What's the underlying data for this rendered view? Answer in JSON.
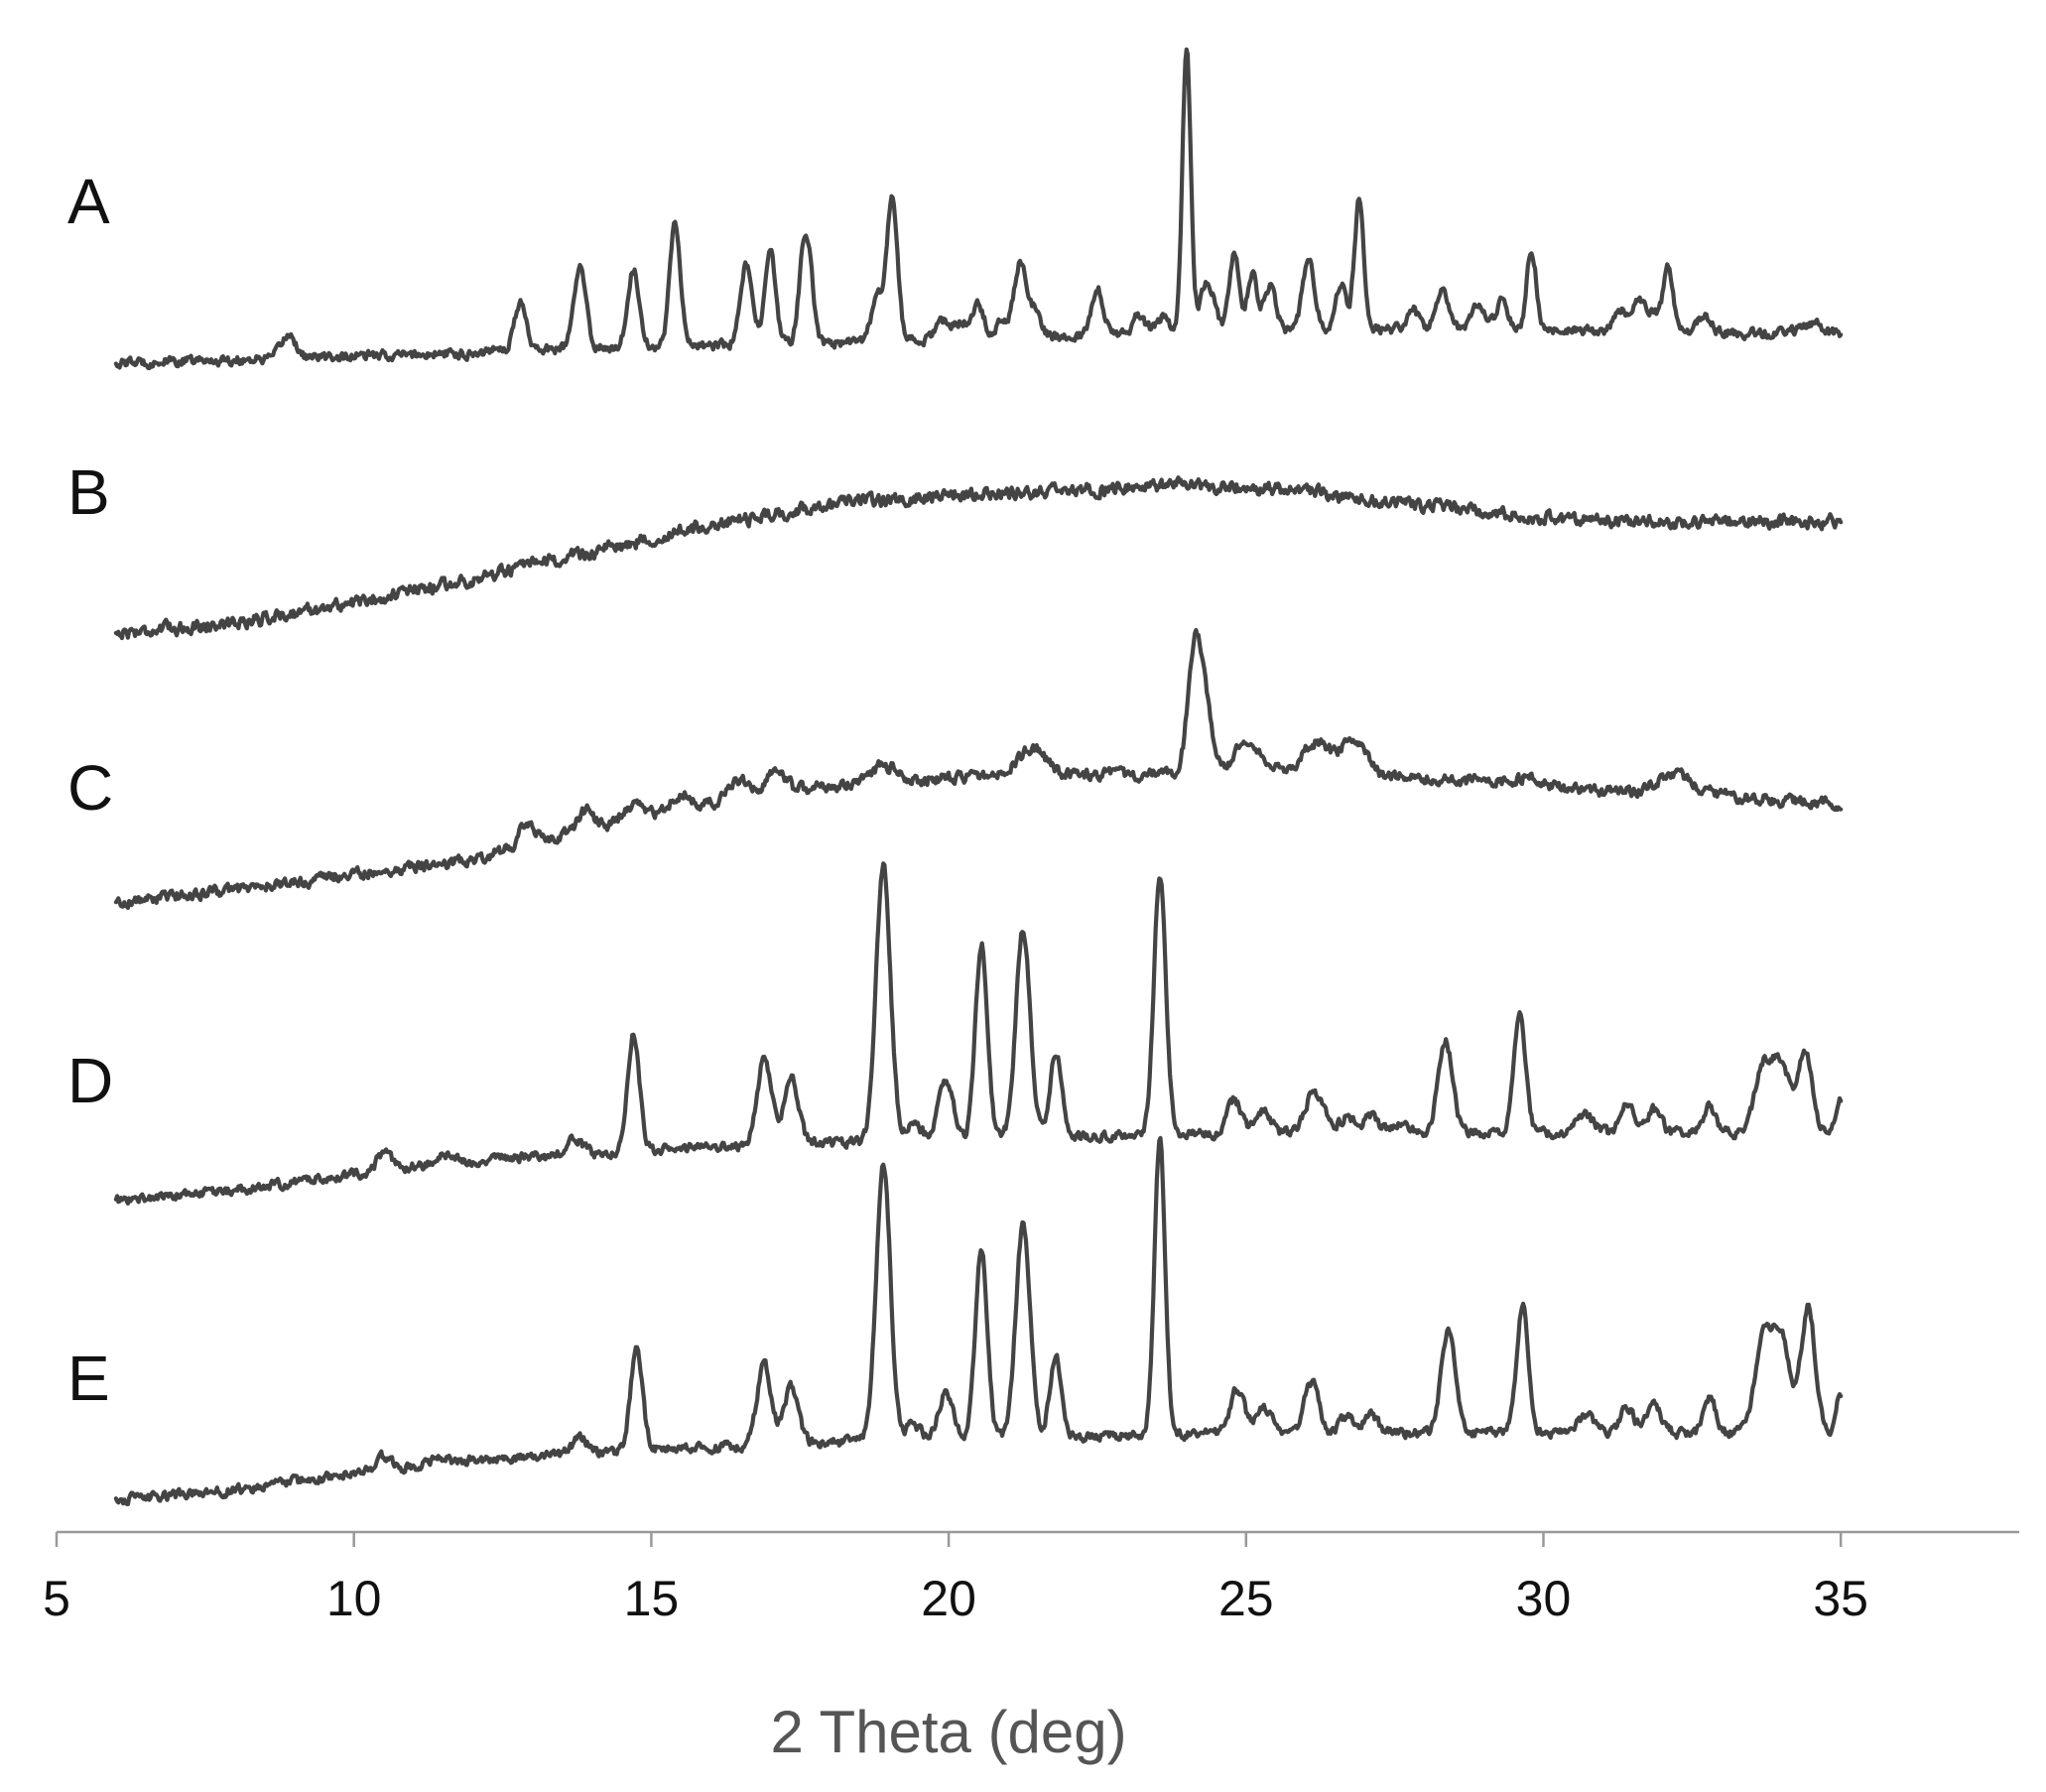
{
  "chart_data": {
    "type": "line",
    "title": "",
    "xlabel": "2 Theta (deg)",
    "ylabel": "",
    "xlim": [
      5,
      38
    ],
    "x_range": [
      6,
      35
    ],
    "xticks": [
      5,
      10,
      15,
      20,
      25,
      30,
      35
    ],
    "tick_labels": [
      "5",
      "10",
      "15",
      "20",
      "25",
      "30",
      "35"
    ],
    "grid": false,
    "legend": "none",
    "y_axis_shown": false,
    "line_color": "#444444",
    "axis_color": "#999999",
    "text_color": "#111111",
    "axis_title_color": "#555555",
    "series": [
      {
        "name": "A",
        "baseline": [
          [
            6,
            0.0
          ],
          [
            12,
            0.03
          ],
          [
            13,
            0.04
          ],
          [
            18,
            0.06
          ],
          [
            22,
            0.08
          ],
          [
            24,
            0.09
          ],
          [
            26,
            0.1
          ],
          [
            29,
            0.1
          ],
          [
            32,
            0.09
          ],
          [
            35,
            0.09
          ]
        ],
        "hump": [],
        "noise": 0.012,
        "peaks": [
          [
            8.9,
            0.07,
            0.12
          ],
          [
            12.4,
            0.015,
            0.1
          ],
          [
            12.8,
            0.14,
            0.1
          ],
          [
            13.8,
            0.24,
            0.1
          ],
          [
            14.7,
            0.23,
            0.1
          ],
          [
            15.4,
            0.37,
            0.09
          ],
          [
            16.6,
            0.24,
            0.1
          ],
          [
            17.0,
            0.27,
            0.09
          ],
          [
            17.6,
            0.33,
            0.1
          ],
          [
            18.8,
            0.13,
            0.1
          ],
          [
            19.05,
            0.42,
            0.09
          ],
          [
            19.9,
            0.05,
            0.12
          ],
          [
            20.2,
            0.05,
            0.1
          ],
          [
            20.5,
            0.1,
            0.1
          ],
          [
            20.9,
            0.05,
            0.1
          ],
          [
            21.2,
            0.22,
            0.1
          ],
          [
            21.45,
            0.08,
            0.1
          ],
          [
            22.5,
            0.14,
            0.1
          ],
          [
            23.2,
            0.06,
            0.1
          ],
          [
            23.6,
            0.05,
            0.1
          ],
          [
            24.0,
            0.85,
            0.07
          ],
          [
            24.35,
            0.15,
            0.12
          ],
          [
            24.8,
            0.23,
            0.08
          ],
          [
            25.1,
            0.17,
            0.08
          ],
          [
            25.4,
            0.13,
            0.1
          ],
          [
            26.05,
            0.21,
            0.1
          ],
          [
            26.6,
            0.14,
            0.08
          ],
          [
            26.9,
            0.38,
            0.08
          ],
          [
            27.8,
            0.06,
            0.1
          ],
          [
            28.3,
            0.12,
            0.1
          ],
          [
            28.9,
            0.07,
            0.1
          ],
          [
            29.3,
            0.08,
            0.1
          ],
          [
            29.8,
            0.24,
            0.08
          ],
          [
            31.3,
            0.06,
            0.12
          ],
          [
            31.6,
            0.1,
            0.1
          ],
          [
            31.85,
            0.06,
            0.1
          ],
          [
            32.1,
            0.19,
            0.08
          ],
          [
            32.7,
            0.05,
            0.12
          ],
          [
            34.5,
            0.03,
            0.15
          ]
        ]
      },
      {
        "name": "B",
        "baseline": [
          [
            6,
            0.0
          ],
          [
            35,
            0.0
          ]
        ],
        "hump": [
          [
            6,
            0.0
          ],
          [
            8,
            0.03
          ],
          [
            10,
            0.09
          ],
          [
            12,
            0.16
          ],
          [
            14,
            0.24
          ],
          [
            16,
            0.32
          ],
          [
            18,
            0.38
          ],
          [
            20,
            0.41
          ],
          [
            22,
            0.42
          ],
          [
            24,
            0.44
          ],
          [
            25,
            0.43
          ],
          [
            26,
            0.42
          ],
          [
            28,
            0.38
          ],
          [
            30,
            0.34
          ],
          [
            32,
            0.33
          ],
          [
            35,
            0.33
          ]
        ],
        "noise": 0.016,
        "peaks": []
      },
      {
        "name": "C",
        "baseline": [
          [
            6,
            0.0
          ],
          [
            35,
            0.0
          ]
        ],
        "hump": [
          [
            6,
            0.0
          ],
          [
            9,
            0.06
          ],
          [
            12,
            0.13
          ],
          [
            13,
            0.18
          ],
          [
            15,
            0.25
          ],
          [
            17,
            0.33
          ],
          [
            19,
            0.36
          ],
          [
            21,
            0.38
          ],
          [
            23,
            0.38
          ],
          [
            24,
            0.38
          ],
          [
            25,
            0.4
          ],
          [
            26,
            0.4
          ],
          [
            27,
            0.38
          ],
          [
            29,
            0.36
          ],
          [
            31,
            0.33
          ],
          [
            33,
            0.32
          ],
          [
            35,
            0.29
          ]
        ],
        "noise": 0.014,
        "peaks": [
          [
            12.9,
            0.06,
            0.12
          ],
          [
            13.9,
            0.06,
            0.15
          ],
          [
            14.7,
            0.05,
            0.2
          ],
          [
            15.5,
            0.05,
            0.2
          ],
          [
            16.5,
            0.05,
            0.2
          ],
          [
            17.1,
            0.06,
            0.15
          ],
          [
            18.9,
            0.05,
            0.2
          ],
          [
            21.4,
            0.08,
            0.22
          ],
          [
            24.15,
            0.4,
            0.12
          ],
          [
            24.35,
            0.12,
            0.1
          ],
          [
            25.0,
            0.07,
            0.2
          ],
          [
            26.2,
            0.08,
            0.2
          ],
          [
            26.8,
            0.1,
            0.2
          ],
          [
            29.8,
            0.03,
            0.2
          ],
          [
            32.2,
            0.06,
            0.3
          ]
        ]
      },
      {
        "name": "D",
        "baseline": [
          [
            6,
            0.0
          ],
          [
            8,
            0.03
          ],
          [
            10,
            0.08
          ],
          [
            12,
            0.12
          ],
          [
            13,
            0.13
          ],
          [
            15,
            0.15
          ],
          [
            18,
            0.17
          ],
          [
            20,
            0.18
          ],
          [
            25,
            0.2
          ],
          [
            28,
            0.2
          ],
          [
            31,
            0.2
          ],
          [
            35,
            0.2
          ]
        ],
        "hump": [],
        "noise": 0.012,
        "peaks": [
          [
            10.5,
            0.05,
            0.12
          ],
          [
            11.5,
            0.02,
            0.15
          ],
          [
            13.7,
            0.05,
            0.12
          ],
          [
            14.7,
            0.35,
            0.1
          ],
          [
            16.9,
            0.26,
            0.12
          ],
          [
            17.35,
            0.2,
            0.12
          ],
          [
            18.9,
            0.82,
            0.12
          ],
          [
            19.4,
            0.06,
            0.12
          ],
          [
            19.95,
            0.18,
            0.12
          ],
          [
            20.55,
            0.58,
            0.1
          ],
          [
            21.25,
            0.62,
            0.12
          ],
          [
            21.8,
            0.25,
            0.1
          ],
          [
            23.55,
            0.77,
            0.1
          ],
          [
            24.8,
            0.1,
            0.12
          ],
          [
            25.3,
            0.07,
            0.12
          ],
          [
            26.1,
            0.1,
            0.12
          ],
          [
            26.3,
            0.06,
            0.12
          ],
          [
            26.7,
            0.05,
            0.12
          ],
          [
            27.1,
            0.05,
            0.12
          ],
          [
            27.6,
            0.03,
            0.15
          ],
          [
            28.35,
            0.28,
            0.12
          ],
          [
            29.6,
            0.35,
            0.1
          ],
          [
            30.7,
            0.05,
            0.15
          ],
          [
            31.4,
            0.1,
            0.1
          ],
          [
            31.85,
            0.07,
            0.12
          ],
          [
            32.8,
            0.08,
            0.1
          ],
          [
            33.7,
            0.2,
            0.14
          ],
          [
            34.0,
            0.2,
            0.14
          ],
          [
            34.4,
            0.25,
            0.12
          ],
          [
            35.0,
            0.1,
            0.08
          ]
        ]
      },
      {
        "name": "E",
        "baseline": [
          [
            6,
            0.0
          ],
          [
            8,
            0.03
          ],
          [
            10,
            0.08
          ],
          [
            12,
            0.12
          ],
          [
            13,
            0.13
          ],
          [
            15,
            0.15
          ],
          [
            18,
            0.17
          ],
          [
            20,
            0.18
          ],
          [
            25,
            0.2
          ],
          [
            28,
            0.2
          ],
          [
            31,
            0.2
          ],
          [
            35,
            0.2
          ]
        ],
        "hump": [],
        "noise": 0.012,
        "peaks": [
          [
            10.5,
            0.04,
            0.12
          ],
          [
            11.4,
            0.02,
            0.15
          ],
          [
            13.8,
            0.05,
            0.12
          ],
          [
            14.75,
            0.3,
            0.1
          ],
          [
            16.9,
            0.24,
            0.12
          ],
          [
            17.35,
            0.17,
            0.12
          ],
          [
            18.9,
            0.82,
            0.12
          ],
          [
            19.4,
            0.05,
            0.12
          ],
          [
            19.95,
            0.14,
            0.12
          ],
          [
            20.55,
            0.56,
            0.1
          ],
          [
            21.25,
            0.63,
            0.12
          ],
          [
            21.8,
            0.24,
            0.1
          ],
          [
            23.55,
            0.87,
            0.09
          ],
          [
            24.85,
            0.13,
            0.12
          ],
          [
            25.3,
            0.08,
            0.12
          ],
          [
            26.1,
            0.15,
            0.12
          ],
          [
            26.7,
            0.05,
            0.12
          ],
          [
            27.1,
            0.05,
            0.12
          ],
          [
            28.4,
            0.3,
            0.12
          ],
          [
            29.65,
            0.38,
            0.1
          ],
          [
            30.7,
            0.05,
            0.15
          ],
          [
            31.4,
            0.07,
            0.12
          ],
          [
            31.85,
            0.08,
            0.12
          ],
          [
            32.8,
            0.1,
            0.1
          ],
          [
            33.7,
            0.28,
            0.14
          ],
          [
            34.0,
            0.28,
            0.14
          ],
          [
            34.45,
            0.37,
            0.12
          ],
          [
            35.0,
            0.12,
            0.08
          ]
        ]
      }
    ]
  }
}
